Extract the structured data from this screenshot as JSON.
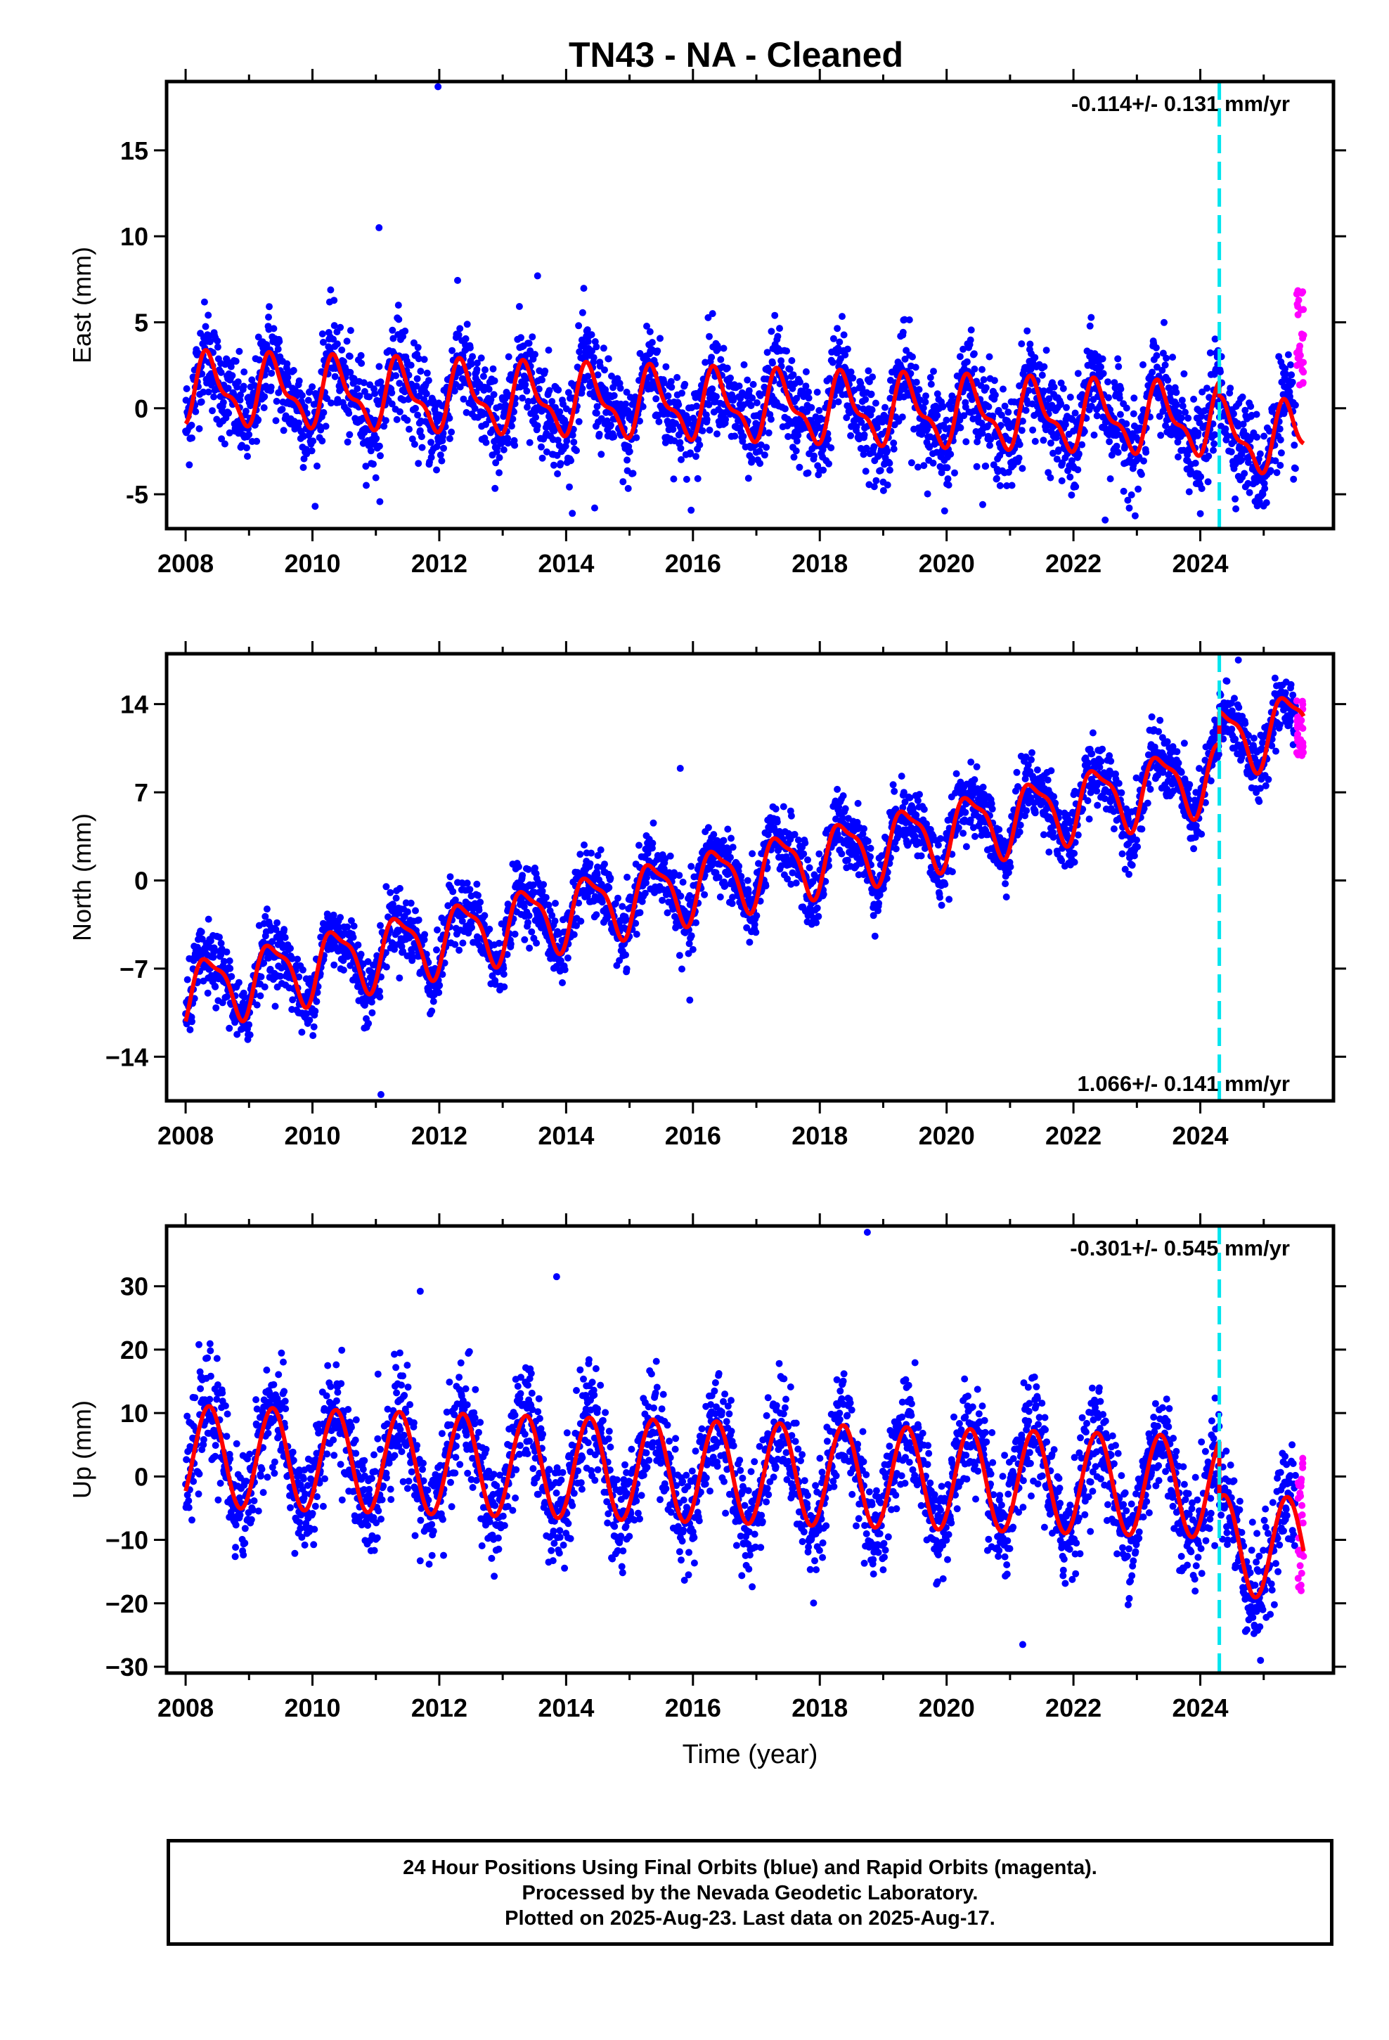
{
  "title": "TN43  - NA - Cleaned",
  "colors": {
    "final_points": "#0000ff",
    "rapid_points": "#ff00ff",
    "model_curve": "#ff0000",
    "event_line": "#00e5ee",
    "frame": "#000000"
  },
  "x_axis_label": "Time (year)",
  "footer": {
    "line1": "24 Hour Positions Using Final Orbits (blue) and Rapid Orbits (magenta).",
    "line2": "Processed by the Nevada Geodetic Laboratory.",
    "line3": "Plotted on 2025-Aug-23. Last data on 2025-Aug-17."
  },
  "chart_data": [
    {
      "type": "scatter",
      "component": "east",
      "ylabel": "East (mm)",
      "xlabel": "",
      "xlim": [
        2007.7,
        2026.1
      ],
      "ylim": [
        -7,
        19
      ],
      "xticks": [
        2008,
        2010,
        2012,
        2014,
        2016,
        2018,
        2020,
        2022,
        2024
      ],
      "yticks": [
        -5,
        0,
        5,
        10,
        15
      ],
      "rate_label": "-0.114+/- 0.131 mm/yr",
      "rate_position": "top-right",
      "event_line_year": 2024.3,
      "series": [
        {
          "name": "model",
          "segments": [
            {
              "start": 2008.0,
              "end": 2019.5,
              "offset": 1.1,
              "trend": -0.114,
              "annual_sin": 1.2,
              "annual_cos": -1.3,
              "semi_sin": -0.3,
              "semi_cos": -0.7
            },
            {
              "start": 2019.5,
              "end": 2024.3,
              "offset": 1.1,
              "trend": -0.114,
              "annual_sin": 1.2,
              "annual_cos": -1.3,
              "semi_sin": -0.3,
              "semi_cos": -0.7
            },
            {
              "start": 2024.3,
              "end": 2025.63,
              "offset": 0.2,
              "trend": -0.114,
              "annual_sin": 1.2,
              "annual_cos": -1.3,
              "semi_sin": -0.3,
              "semi_cos": -0.7
            }
          ]
        }
      ],
      "final_points": {
        "start": 2008.0,
        "end": 2025.5,
        "count": 3000,
        "scatter_sd": 1.4
      },
      "rapid_points": {
        "start": 2025.52,
        "end": 2025.63,
        "count": 30,
        "y_range": [
          1.3,
          7.0
        ]
      },
      "outliers": [
        [
          2011.98,
          18.7
        ],
        [
          2011.05,
          10.5
        ],
        [
          2014.45,
          -5.8
        ],
        [
          2022.5,
          -6.5
        ],
        [
          2025.5,
          -3.5
        ],
        [
          2013.55,
          7.7
        ]
      ]
    },
    {
      "type": "scatter",
      "component": "north",
      "ylabel": "North (mm)",
      "xlabel": "",
      "xlim": [
        2007.7,
        2026.1
      ],
      "ylim": [
        -17.5,
        18
      ],
      "xticks": [
        2008,
        2010,
        2012,
        2014,
        2016,
        2018,
        2020,
        2022,
        2024
      ],
      "yticks": [
        -14,
        -7,
        0,
        7,
        14
      ],
      "yticklabels": [
        "−14",
        "−7",
        "0",
        "7",
        "14"
      ],
      "rate_label": "1.066+/- 0.141 mm/yr",
      "rate_position": "bottom-right",
      "event_line_year": 2024.3,
      "series": [
        {
          "name": "model",
          "segments": [
            {
              "start": 2008.0,
              "end": 2019.5,
              "offset": -8.9,
              "trend": 1.066,
              "annual_sin": 1.8,
              "annual_cos": -1.8,
              "semi_sin": 0.6,
              "semi_cos": -0.5
            },
            {
              "start": 2019.5,
              "end": 2024.3,
              "offset": -8.9,
              "trend": 1.066,
              "annual_sin": 1.8,
              "annual_cos": -1.8,
              "semi_sin": 0.6,
              "semi_cos": -0.5
            },
            {
              "start": 2024.3,
              "end": 2025.63,
              "offset": -6.3,
              "trend": 1.066,
              "annual_sin": 1.8,
              "annual_cos": -1.8,
              "semi_sin": 0.6,
              "semi_cos": -0.5
            }
          ]
        }
      ],
      "final_points": {
        "start": 2008.0,
        "end": 2025.5,
        "count": 3000,
        "scatter_sd": 1.3
      },
      "rapid_points": {
        "start": 2025.52,
        "end": 2025.63,
        "count": 30,
        "y_range": [
          9.8,
          14.3
        ]
      },
      "outliers": [
        [
          2011.08,
          -17.0
        ],
        [
          2015.8,
          8.9
        ],
        [
          2015.95,
          -9.5
        ],
        [
          2024.6,
          17.5
        ]
      ]
    },
    {
      "type": "scatter",
      "component": "up",
      "ylabel": "Up (mm)",
      "xlabel": "Time (year)",
      "xlim": [
        2007.7,
        2026.1
      ],
      "ylim": [
        -31,
        39.5
      ],
      "xticks": [
        2008,
        2010,
        2012,
        2014,
        2016,
        2018,
        2020,
        2022,
        2024
      ],
      "yticks": [
        -30,
        -20,
        -10,
        0,
        10,
        20,
        30
      ],
      "yticklabels": [
        "−30",
        "−20",
        "−10",
        "0",
        "10",
        "20",
        "30"
      ],
      "rate_label": "-0.301+/- 0.545 mm/yr",
      "rate_position": "top-right",
      "event_line_year": 2024.3,
      "series": [
        {
          "name": "model",
          "segments": [
            {
              "start": 2008.0,
              "end": 2019.5,
              "offset": 3.2,
              "trend": -0.301,
              "annual_sin": 5.8,
              "annual_cos": -5.5,
              "semi_sin": 0.0,
              "semi_cos": 0.0
            },
            {
              "start": 2019.5,
              "end": 2024.3,
              "offset": 3.2,
              "trend": -0.301,
              "annual_sin": 5.8,
              "annual_cos": -5.5,
              "semi_sin": 0.0,
              "semi_cos": 0.0
            },
            {
              "start": 2024.3,
              "end": 2025.63,
              "offset": -6.0,
              "trend": -0.301,
              "annual_sin": 5.8,
              "annual_cos": -5.5,
              "semi_sin": 0.0,
              "semi_cos": 0.0
            }
          ]
        }
      ],
      "final_points": {
        "start": 2008.0,
        "end": 2025.5,
        "count": 3000,
        "scatter_sd": 4.2
      },
      "rapid_points": {
        "start": 2025.52,
        "end": 2025.63,
        "count": 30,
        "y_range": [
          -18.5,
          3.0
        ]
      },
      "outliers": [
        [
          2018.75,
          38.5
        ],
        [
          2013.85,
          31.5
        ],
        [
          2011.7,
          29.2
        ],
        [
          2024.95,
          -29.0
        ],
        [
          2021.2,
          -26.5
        ]
      ]
    }
  ]
}
